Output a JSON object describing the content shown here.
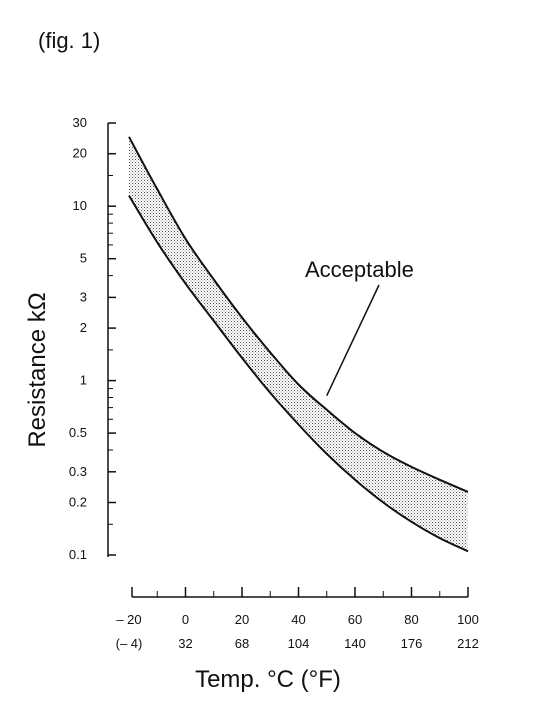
{
  "figure_label": "(fig. 1)",
  "chart_data": {
    "type": "area",
    "title": "",
    "xlabel": "Temp. °C (°F)",
    "ylabel": "Resistance kΩ",
    "y_scale": "log",
    "xlim": [
      -20,
      100
    ],
    "ylim": [
      0.1,
      30
    ],
    "grid": false,
    "x_ticks": [
      {
        "c": -20,
        "c_label": "– 20",
        "f_label": "(– 4)"
      },
      {
        "c": 0,
        "c_label": "0",
        "f_label": "32"
      },
      {
        "c": 20,
        "c_label": "20",
        "f_label": "68"
      },
      {
        "c": 40,
        "c_label": "40",
        "f_label": "104"
      },
      {
        "c": 60,
        "c_label": "60",
        "f_label": "140"
      },
      {
        "c": 80,
        "c_label": "80",
        "f_label": "176"
      },
      {
        "c": 100,
        "c_label": "100",
        "f_label": "212"
      }
    ],
    "y_ticks": [
      {
        "value": 30,
        "label": "30"
      },
      {
        "value": 20,
        "label": "20"
      },
      {
        "value": 10,
        "label": "10"
      },
      {
        "value": 5,
        "label": "5"
      },
      {
        "value": 3,
        "label": "3"
      },
      {
        "value": 2,
        "label": "2"
      },
      {
        "value": 1,
        "label": "1"
      },
      {
        "value": 0.5,
        "label": "0.5"
      },
      {
        "value": 0.3,
        "label": "0.3"
      },
      {
        "value": 0.2,
        "label": "0.2"
      },
      {
        "value": 0.1,
        "label": "0.1"
      }
    ],
    "x_minor_ticks": [
      -10,
      10,
      30,
      50,
      70,
      90
    ],
    "y_minor_ticks": [
      0.15,
      0.4,
      0.6,
      0.7,
      0.8,
      0.9,
      1.5,
      4,
      6,
      7,
      8,
      9,
      15
    ],
    "series": [
      {
        "x": [
          -20,
          -10,
          0,
          10,
          20,
          30,
          40,
          50,
          60,
          70,
          80,
          90,
          100
        ],
        "values": [
          25,
          12.5,
          6.5,
          3.8,
          2.3,
          1.45,
          0.95,
          0.68,
          0.5,
          0.39,
          0.32,
          0.27,
          0.23
        ]
      },
      {
        "x": [
          -20,
          -10,
          0,
          10,
          20,
          30,
          40,
          50,
          60,
          70,
          80,
          90,
          100
        ],
        "values": [
          11.5,
          6.2,
          3.6,
          2.2,
          1.35,
          0.85,
          0.56,
          0.38,
          0.27,
          0.2,
          0.155,
          0.125,
          0.105
        ]
      }
    ],
    "band_label": "Acceptable",
    "annotation_target": {
      "x": 50,
      "y": 0.82
    }
  }
}
